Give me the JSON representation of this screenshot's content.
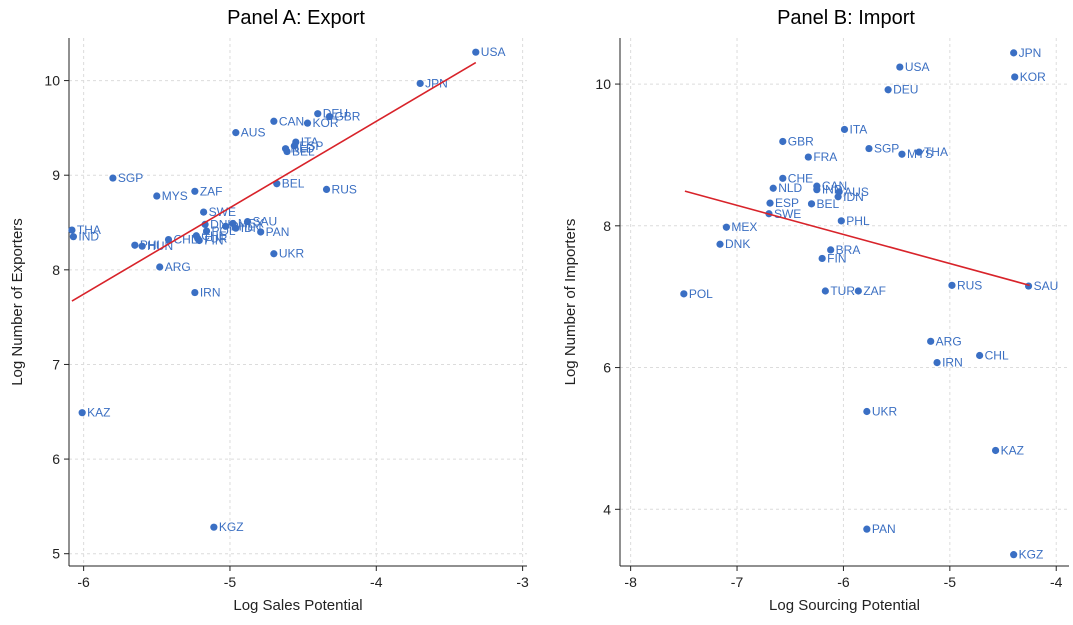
{
  "chart_data": [
    {
      "type": "scatter",
      "title": "Panel A: Export",
      "xlabel": "Log Sales Potential",
      "ylabel": "Log Number of Exporters",
      "xlim": [
        -6.1,
        -2.97
      ],
      "ylim": [
        4.87,
        10.45
      ],
      "xticks": [
        "-6",
        "-5",
        "-4",
        "-3"
      ],
      "yticks": [
        "5",
        "6",
        "7",
        "8",
        "9",
        "10"
      ],
      "grid": true,
      "colors": {
        "points": "#3a6fc4",
        "labels": "#3b6fc2",
        "fit": "#d8232a"
      },
      "fit_line": {
        "x": [
          -6.08,
          -3.32
        ],
        "y": [
          7.67,
          10.19
        ]
      },
      "points": [
        {
          "x": -3.32,
          "y": 10.3,
          "label": "USA"
        },
        {
          "x": -3.7,
          "y": 9.97,
          "label": "JPN"
        },
        {
          "x": -4.4,
          "y": 9.65,
          "label": "DEU"
        },
        {
          "x": -4.32,
          "y": 9.62,
          "label": "GBR"
        },
        {
          "x": -4.47,
          "y": 9.55,
          "label": "KOR"
        },
        {
          "x": -4.7,
          "y": 9.57,
          "label": "CAN"
        },
        {
          "x": -4.96,
          "y": 9.45,
          "label": "AUS"
        },
        {
          "x": -4.55,
          "y": 9.35,
          "label": "ITA"
        },
        {
          "x": -4.56,
          "y": 9.31,
          "label": "ESP"
        },
        {
          "x": -4.62,
          "y": 9.28,
          "label": "NLD"
        },
        {
          "x": -4.61,
          "y": 9.25,
          "label": "BEL"
        },
        {
          "x": -5.8,
          "y": 8.97,
          "label": "SGP"
        },
        {
          "x": -5.5,
          "y": 8.78,
          "label": "MYS"
        },
        {
          "x": -5.24,
          "y": 8.83,
          "label": "ZAF"
        },
        {
          "x": -4.68,
          "y": 8.91,
          "label": "BEL"
        },
        {
          "x": -4.34,
          "y": 8.85,
          "label": "RUS"
        },
        {
          "x": -5.18,
          "y": 8.61,
          "label": "SWE"
        },
        {
          "x": -5.17,
          "y": 8.48,
          "label": "DNK"
        },
        {
          "x": -4.88,
          "y": 8.51,
          "label": "SAU"
        },
        {
          "x": -4.98,
          "y": 8.49,
          "label": "MEX"
        },
        {
          "x": -5.03,
          "y": 8.46,
          "label": "PHL"
        },
        {
          "x": -5.16,
          "y": 8.41,
          "label": "POL"
        },
        {
          "x": -4.96,
          "y": 8.44,
          "label": "IDN"
        },
        {
          "x": -4.79,
          "y": 8.4,
          "label": "PAN"
        },
        {
          "x": -5.23,
          "y": 8.36,
          "label": "CHE"
        },
        {
          "x": -5.22,
          "y": 8.33,
          "label": "TUR"
        },
        {
          "x": -5.21,
          "y": 8.31,
          "label": "FIN"
        },
        {
          "x": -5.42,
          "y": 8.32,
          "label": "CHL"
        },
        {
          "x": -5.65,
          "y": 8.26,
          "label": "PHI"
        },
        {
          "x": -5.6,
          "y": 8.25,
          "label": "HUN"
        },
        {
          "x": -4.7,
          "y": 8.17,
          "label": "UKR"
        },
        {
          "x": -5.48,
          "y": 8.03,
          "label": "ARG"
        },
        {
          "x": -6.08,
          "y": 8.42,
          "label": "THA"
        },
        {
          "x": -6.07,
          "y": 8.35,
          "label": "IND"
        },
        {
          "x": -5.24,
          "y": 7.76,
          "label": "IRN"
        },
        {
          "x": -6.01,
          "y": 6.49,
          "label": "KAZ"
        },
        {
          "x": -5.11,
          "y": 5.28,
          "label": "KGZ"
        }
      ]
    },
    {
      "type": "scatter",
      "title": "Panel B: Import",
      "xlabel": "Log Sourcing Potential",
      "ylabel": "Log Number of Importers",
      "xlim": [
        -8.1,
        -3.88
      ],
      "ylim": [
        3.2,
        10.65
      ],
      "xticks": [
        "-8",
        "-7",
        "-6",
        "-5",
        "-4"
      ],
      "yticks": [
        "4",
        "6",
        "8",
        "10"
      ],
      "grid": true,
      "colors": {
        "points": "#3a6fc4",
        "labels": "#3b6fc2",
        "fit": "#d8232a"
      },
      "fit_line": {
        "x": [
          -7.49,
          -4.25
        ],
        "y": [
          8.49,
          7.16
        ]
      },
      "points": [
        {
          "x": -4.4,
          "y": 10.44,
          "label": "JPN"
        },
        {
          "x": -5.47,
          "y": 10.24,
          "label": "USA"
        },
        {
          "x": -4.39,
          "y": 10.1,
          "label": "KOR"
        },
        {
          "x": -5.58,
          "y": 9.92,
          "label": "DEU"
        },
        {
          "x": -5.99,
          "y": 9.36,
          "label": "ITA"
        },
        {
          "x": -6.57,
          "y": 9.19,
          "label": "GBR"
        },
        {
          "x": -5.76,
          "y": 9.09,
          "label": "SGP"
        },
        {
          "x": -5.29,
          "y": 9.04,
          "label": "THA"
        },
        {
          "x": -5.45,
          "y": 9.01,
          "label": "MYS"
        },
        {
          "x": -6.33,
          "y": 8.97,
          "label": "FRA"
        },
        {
          "x": -6.57,
          "y": 8.67,
          "label": "CHE"
        },
        {
          "x": -6.25,
          "y": 8.56,
          "label": "CAN"
        },
        {
          "x": -6.25,
          "y": 8.51,
          "label": "IND"
        },
        {
          "x": -6.66,
          "y": 8.53,
          "label": "NLD"
        },
        {
          "x": -6.04,
          "y": 8.48,
          "label": "AUS"
        },
        {
          "x": -6.05,
          "y": 8.41,
          "label": "IDN"
        },
        {
          "x": -6.69,
          "y": 8.32,
          "label": "ESP"
        },
        {
          "x": -6.3,
          "y": 8.31,
          "label": "BEL"
        },
        {
          "x": -6.7,
          "y": 8.17,
          "label": "SWE"
        },
        {
          "x": -6.02,
          "y": 8.07,
          "label": "PHL"
        },
        {
          "x": -7.1,
          "y": 7.98,
          "label": "MEX"
        },
        {
          "x": -7.16,
          "y": 7.74,
          "label": "DNK"
        },
        {
          "x": -6.12,
          "y": 7.66,
          "label": "BRA"
        },
        {
          "x": -6.2,
          "y": 7.54,
          "label": "FIN"
        },
        {
          "x": -7.5,
          "y": 7.04,
          "label": "POL"
        },
        {
          "x": -6.17,
          "y": 7.08,
          "label": "TUR"
        },
        {
          "x": -5.86,
          "y": 7.08,
          "label": "ZAF"
        },
        {
          "x": -4.98,
          "y": 7.16,
          "label": "RUS"
        },
        {
          "x": -4.26,
          "y": 7.15,
          "label": "SAU"
        },
        {
          "x": -5.18,
          "y": 6.37,
          "label": "ARG"
        },
        {
          "x": -4.72,
          "y": 6.17,
          "label": "CHL"
        },
        {
          "x": -5.12,
          "y": 6.07,
          "label": "IRN"
        },
        {
          "x": -5.78,
          "y": 5.38,
          "label": "UKR"
        },
        {
          "x": -4.57,
          "y": 4.83,
          "label": "KAZ"
        },
        {
          "x": -5.78,
          "y": 3.72,
          "label": "PAN"
        },
        {
          "x": -4.4,
          "y": 3.36,
          "label": "KGZ"
        }
      ]
    }
  ]
}
